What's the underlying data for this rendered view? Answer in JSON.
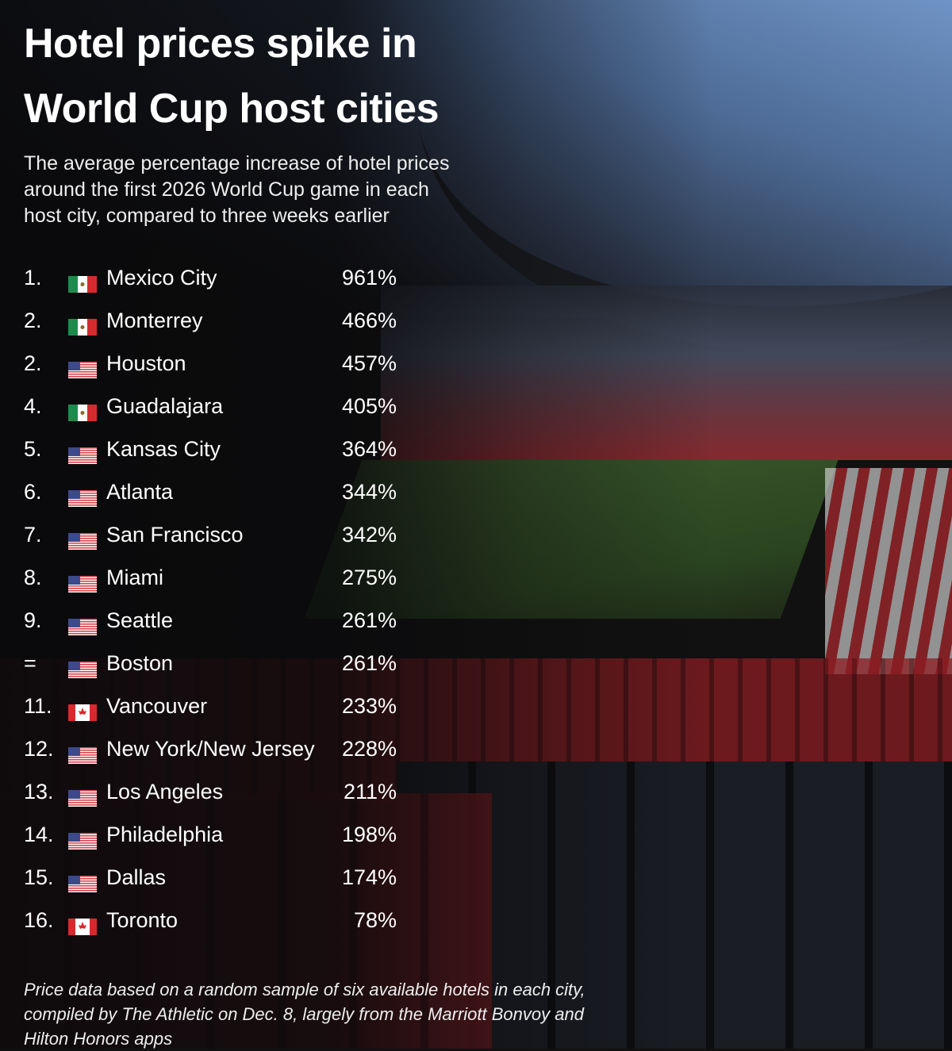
{
  "title_lines": [
    "Hotel prices spike in",
    "World Cup host cities"
  ],
  "subtitle_lines": [
    "The average percentage increase of hotel prices",
    "around the first 2026 World Cup game in each",
    "host city, compared to three weeks earlier"
  ],
  "chart_data": {
    "type": "table",
    "columns": [
      "rank",
      "country",
      "city",
      "increase"
    ],
    "rows": [
      {
        "rank": "1.",
        "country": "mexico",
        "city": "Mexico City",
        "value": "961%"
      },
      {
        "rank": "2.",
        "country": "mexico",
        "city": "Monterrey",
        "value": "466%"
      },
      {
        "rank": "2.",
        "country": "usa",
        "city": "Houston",
        "value": "457%"
      },
      {
        "rank": "4.",
        "country": "mexico",
        "city": "Guadalajara",
        "value": "405%"
      },
      {
        "rank": "5.",
        "country": "usa",
        "city": "Kansas City",
        "value": "364%"
      },
      {
        "rank": "6.",
        "country": "usa",
        "city": "Atlanta",
        "value": "344%"
      },
      {
        "rank": "7.",
        "country": "usa",
        "city": "San Francisco",
        "value": "342%"
      },
      {
        "rank": "8.",
        "country": "usa",
        "city": "Miami",
        "value": "275%"
      },
      {
        "rank": "9.",
        "country": "usa",
        "city": "Seattle",
        "value": "261%"
      },
      {
        "rank": "=",
        "country": "usa",
        "city": "Boston",
        "value": "261%"
      },
      {
        "rank": "11.",
        "country": "canada",
        "city": "Vancouver",
        "value": "233%"
      },
      {
        "rank": "12.",
        "country": "usa",
        "city": "New York/New Jersey",
        "value": "228%"
      },
      {
        "rank": "13.",
        "country": "usa",
        "city": "Los Angeles",
        "value": "211%"
      },
      {
        "rank": "14.",
        "country": "usa",
        "city": "Philadelphia",
        "value": "198%"
      },
      {
        "rank": "15.",
        "country": "usa",
        "city": "Dallas",
        "value": "174%"
      },
      {
        "rank": "16.",
        "country": "canada",
        "city": "Toronto",
        "value": "78%"
      }
    ]
  },
  "footnote_lines": [
    "Price data based on a random sample of six available hotels in each city,",
    "compiled by The Athletic on Dec. 8, largely from the Marriott Bonvoy and",
    "Hilton Honors apps"
  ],
  "colors": {
    "text": "#ffffff",
    "mexico_green": "#1f8a4c",
    "mexico_red": "#d52b2e",
    "usa_red": "#d8434d",
    "usa_blue": "#3c4a8c",
    "canada_red": "#d52b2e"
  }
}
